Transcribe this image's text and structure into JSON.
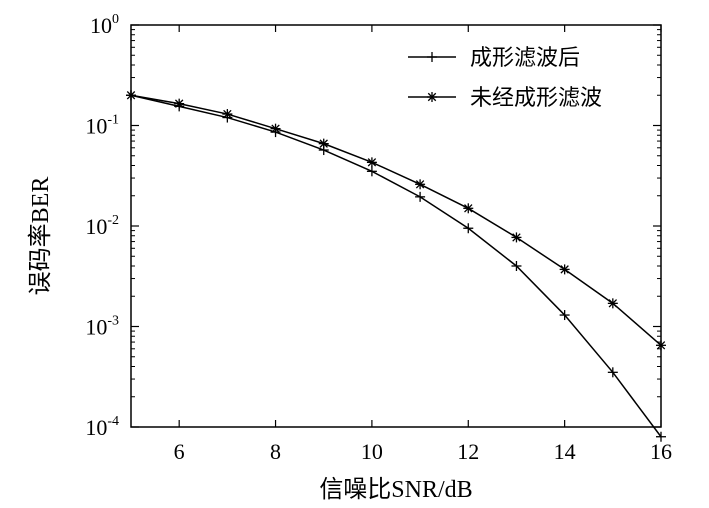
{
  "chart_data": {
    "type": "line",
    "xlabel": "信噪比SNR/dB",
    "ylabel": "误码率BER",
    "xlim": [
      5,
      16
    ],
    "ylim": [
      0.0001,
      1
    ],
    "yscale": "log",
    "grid": false,
    "legend_position": "top-right",
    "x_ticks": [
      "6",
      "8",
      "10",
      "12",
      "14",
      "16"
    ],
    "y_ticks": [
      {
        "base": "10",
        "exp": "-4"
      },
      {
        "base": "10",
        "exp": "-3"
      },
      {
        "base": "10",
        "exp": "-2"
      },
      {
        "base": "10",
        "exp": "-1"
      },
      {
        "base": "10",
        "exp": "0"
      }
    ],
    "x": [
      5,
      6,
      7,
      8,
      9,
      10,
      11,
      12,
      13,
      14,
      15,
      16
    ],
    "series": [
      {
        "name": "成形滤波后",
        "marker": "plus",
        "values": [
          0.2,
          0.155,
          0.12,
          0.086,
          0.057,
          0.035,
          0.0195,
          0.0095,
          0.004,
          0.0013,
          0.00035,
          8e-05
        ]
      },
      {
        "name": "未经成形滤波",
        "marker": "asterisk",
        "values": [
          0.2,
          0.165,
          0.13,
          0.093,
          0.066,
          0.043,
          0.026,
          0.015,
          0.0077,
          0.0037,
          0.0017,
          0.00065
        ]
      }
    ],
    "color": "#000000"
  }
}
